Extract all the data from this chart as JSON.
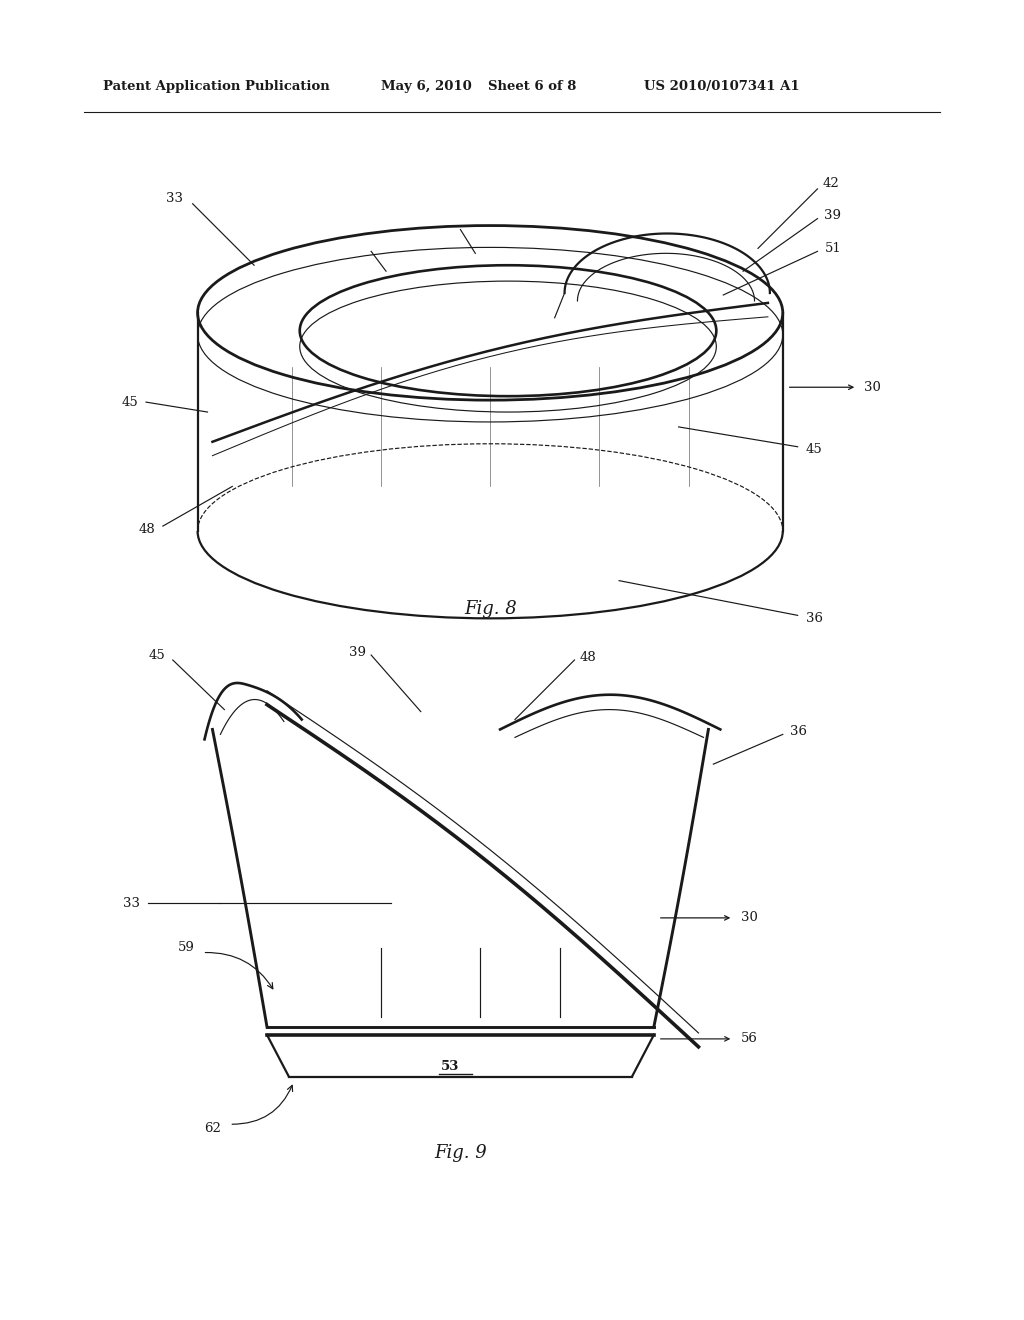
{
  "bg_color": "#ffffff",
  "header_text": "Patent Application Publication",
  "header_date": "May 6, 2010",
  "header_sheet": "Sheet 6 of 8",
  "header_patent": "US 2010/0107341 A1",
  "fig8_label": "Fig. 8",
  "fig9_label": "Fig. 9",
  "line_color": "#1a1a1a",
  "line_width": 1.6,
  "thin_line": 0.85
}
